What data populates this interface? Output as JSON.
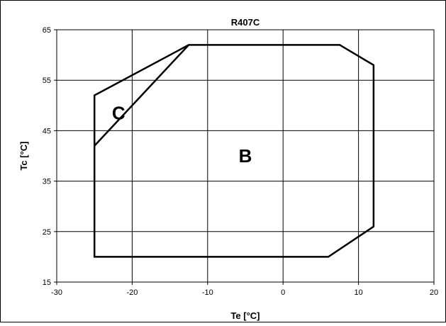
{
  "chart_data": {
    "type": "line",
    "title": "R407C",
    "xlabel": "Te [°C]",
    "ylabel": "Tc [°C]",
    "xlim": [
      -30,
      20
    ],
    "ylim": [
      15,
      65
    ],
    "x_ticks": [
      -30,
      -20,
      -10,
      0,
      10,
      20
    ],
    "y_ticks": [
      15,
      25,
      35,
      45,
      55,
      65
    ],
    "x_tick_labels": [
      "-30",
      "-20",
      "-10",
      "0",
      "10",
      "20"
    ],
    "y_tick_labels": [
      "15",
      "25",
      "35",
      "45",
      "55",
      "65"
    ],
    "grid": true,
    "series": [
      {
        "name": "B",
        "points": [
          [
            -25,
            42
          ],
          [
            -25,
            20
          ],
          [
            6,
            20
          ],
          [
            12,
            26
          ],
          [
            12,
            58
          ],
          [
            7.5,
            62
          ],
          [
            -12.5,
            62
          ],
          [
            -25,
            42
          ]
        ]
      },
      {
        "name": "C",
        "points": [
          [
            -25,
            42
          ],
          [
            -25,
            52
          ],
          [
            -12.5,
            62
          ]
        ]
      }
    ],
    "annotations": [
      {
        "text": "C",
        "x": -21.8,
        "y": 48.5
      },
      {
        "text": "B",
        "x": -5,
        "y": 40
      }
    ]
  }
}
